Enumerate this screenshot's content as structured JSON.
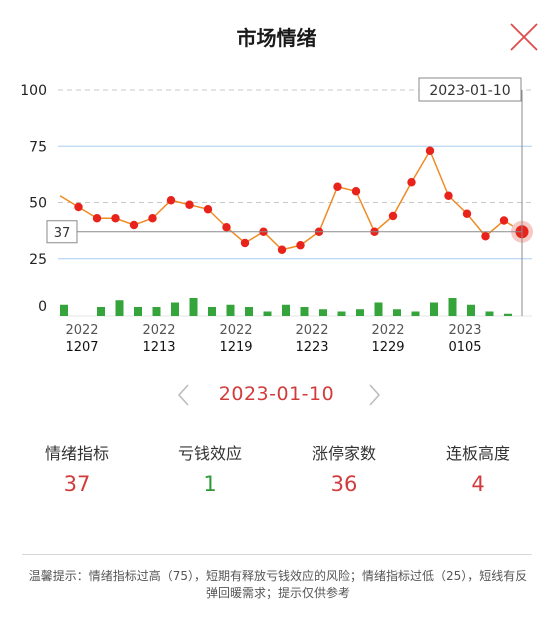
{
  "header": {
    "title": "市场情绪"
  },
  "chart_data": {
    "type": "line",
    "y_ticks": [
      "100",
      "75",
      "50",
      "25",
      "0"
    ],
    "ylim": [
      0,
      100
    ],
    "x_labels": [
      {
        "year": "2022",
        "md": "1207"
      },
      {
        "year": "2022",
        "md": "1213"
      },
      {
        "year": "2022",
        "md": "1219"
      },
      {
        "year": "2022",
        "md": "1223"
      },
      {
        "year": "2022",
        "md": "1229"
      },
      {
        "year": "2023",
        "md": "0105"
      }
    ],
    "series": [
      {
        "values": [
          53,
          48,
          43,
          43,
          40,
          43,
          51,
          49,
          47,
          39,
          32,
          37,
          29,
          31,
          37,
          57,
          55,
          37,
          44,
          59,
          73,
          53,
          45,
          35,
          42,
          37
        ]
      }
    ],
    "bars": [
      5,
      0,
      4,
      7,
      4,
      4,
      6,
      8,
      4,
      5,
      4,
      2,
      5,
      4,
      3,
      2,
      3,
      6,
      3,
      2,
      6,
      8,
      5,
      2,
      1
    ],
    "crosshair_date": "2023-01-10",
    "crosshair_value": "37",
    "colors": {
      "line": "#f08a24",
      "point": "#e8231c",
      "bar": "#35a43a",
      "grid_blue": "#a8cdf0",
      "grid_dash": "#c9c9c9"
    }
  },
  "date_nav": {
    "date": "2023-01-10"
  },
  "stats": [
    {
      "label": "情绪指标",
      "value": "37",
      "color": "#d23b3b"
    },
    {
      "label": "亏钱效应",
      "value": "1",
      "color": "#2e9a36"
    },
    {
      "label": "涨停家数",
      "value": "36",
      "color": "#d23b3b"
    },
    {
      "label": "连板高度",
      "value": "4",
      "color": "#d23b3b"
    }
  ],
  "tip": {
    "text": "温馨提示：情绪指标过高（75），短期有释放亏钱效应的风险；情绪指标过低（25），短线有反弹回暖需求；提示仅供参考"
  }
}
